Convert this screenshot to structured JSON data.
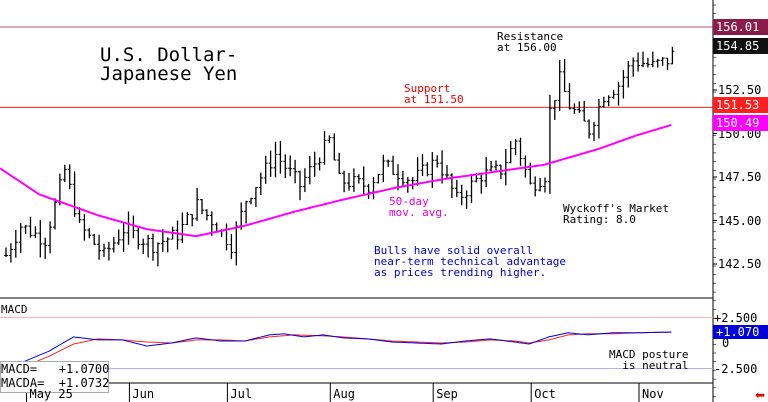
{
  "title_line1": "U.S. Dollar-",
  "title_line2": "Japanese Yen",
  "annotations": {
    "resistance": "Resistance\nat 156.00",
    "support": "Support\nat 151.50",
    "ma": "50-day\nmov. avg.",
    "rating": "Wyckoff's Market\nRating: 8.0",
    "comment": "Bulls have solid overall\nnear-term technical advantage\nas prices trending higher.",
    "macd_note": "MACD posture\n  is neutral"
  },
  "price_tags": {
    "resistance": "156.01",
    "last": "154.85",
    "support": "151.53",
    "ma": "150.49",
    "macd": "+1.070"
  },
  "colors": {
    "resistance": "#8b1d4a",
    "last": "#111111",
    "support": "#ff2020",
    "ma": "#ff00ff",
    "macd": "#0000dd",
    "signal": "#ff2020"
  },
  "macd_label": "MACD",
  "macd_legend": {
    "macd": "MACD=   +1.0700",
    "macda": "MACDA=  +1.0732"
  },
  "chart_data": {
    "type": "ohlc",
    "yticks": [
      "152.50",
      "150.00",
      "147.50",
      "145.00",
      "142.50"
    ],
    "ytick_values": [
      152.5,
      150,
      147.5,
      145,
      142.5
    ],
    "ylim": [
      140.6,
      157.5
    ],
    "macd_yticks": [
      "+2.500",
      "0",
      "-2.500"
    ],
    "macd_ytick_values": [
      2.5,
      0,
      -2.5
    ],
    "macd_ylim": [
      -4,
      5
    ],
    "months": [
      {
        "label": "May 25",
        "bar": 5
      },
      {
        "label": "Jun",
        "bar": 26
      },
      {
        "label": "Jul",
        "bar": 46
      },
      {
        "label": "Aug",
        "bar": 67
      },
      {
        "label": "Sep",
        "bar": 88
      },
      {
        "label": "Oct",
        "bar": 108
      },
      {
        "label": "Nov",
        "bar": 130
      }
    ],
    "bars": 137,
    "resistance": 156.0,
    "support": 151.5,
    "close_keypoints": [
      [
        0,
        143.0
      ],
      [
        3,
        144.7
      ],
      [
        8,
        143.9
      ],
      [
        12,
        147.9
      ],
      [
        15,
        144.7
      ],
      [
        20,
        143.0
      ],
      [
        24,
        144.5
      ],
      [
        30,
        143.6
      ],
      [
        35,
        144.2
      ],
      [
        39,
        145.9
      ],
      [
        43,
        144.7
      ],
      [
        46,
        143.6
      ],
      [
        49,
        146.2
      ],
      [
        55,
        148.8
      ],
      [
        60,
        147.0
      ],
      [
        66,
        149.6
      ],
      [
        68,
        147.3
      ],
      [
        74,
        147.0
      ],
      [
        77,
        148.2
      ],
      [
        83,
        147.3
      ],
      [
        88,
        148.5
      ],
      [
        92,
        146.2
      ],
      [
        97,
        147.6
      ],
      [
        101,
        147.9
      ],
      [
        104,
        149.6
      ],
      [
        107,
        147.0
      ],
      [
        110,
        147.6
      ],
      [
        111,
        151.3
      ],
      [
        113,
        153.1
      ],
      [
        115,
        151.6
      ],
      [
        119,
        150.2
      ],
      [
        122,
        152.2
      ],
      [
        125,
        152.8
      ],
      [
        128,
        154.2
      ],
      [
        132,
        153.9
      ],
      [
        135,
        154.2
      ],
      [
        137,
        154.85
      ]
    ],
    "ma50_keypoints": [
      [
        0,
        148.0
      ],
      [
        8,
        146.5
      ],
      [
        20,
        145.3
      ],
      [
        30,
        144.5
      ],
      [
        40,
        144.1
      ],
      [
        50,
        144.7
      ],
      [
        60,
        145.5
      ],
      [
        70,
        146.2
      ],
      [
        81,
        146.9
      ],
      [
        91,
        147.4
      ],
      [
        101,
        147.8
      ],
      [
        111,
        148.2
      ],
      [
        122,
        149.1
      ],
      [
        130,
        149.9
      ],
      [
        137,
        150.49
      ]
    ],
    "macd_keypoints": [
      [
        0,
        -2.6
      ],
      [
        5,
        -1.8
      ],
      [
        10,
        -0.8
      ],
      [
        15,
        0.6
      ],
      [
        20,
        0.3
      ],
      [
        25,
        0.3
      ],
      [
        30,
        -0.3
      ],
      [
        35,
        0
      ],
      [
        40,
        0.5
      ],
      [
        45,
        0.2
      ],
      [
        50,
        0.2
      ],
      [
        55,
        0.8
      ],
      [
        58,
        0.9
      ],
      [
        62,
        0.6
      ],
      [
        66,
        0.8
      ],
      [
        70,
        0.5
      ],
      [
        75,
        0.4
      ],
      [
        80,
        0.1
      ],
      [
        85,
        0
      ],
      [
        90,
        -0.1
      ],
      [
        95,
        0.2
      ],
      [
        100,
        0.4
      ],
      [
        105,
        0.1
      ],
      [
        108,
        -0.1
      ],
      [
        112,
        0.6
      ],
      [
        116,
        1.0
      ],
      [
        120,
        0.8
      ],
      [
        125,
        1.0
      ],
      [
        130,
        1.0
      ],
      [
        137,
        1.07
      ]
    ],
    "signal_keypoints": [
      [
        0,
        -2.8
      ],
      [
        5,
        -2.3
      ],
      [
        10,
        -1.3
      ],
      [
        15,
        -0.1
      ],
      [
        20,
        0.4
      ],
      [
        25,
        0.3
      ],
      [
        30,
        0.1
      ],
      [
        35,
        0
      ],
      [
        40,
        0.3
      ],
      [
        45,
        0.3
      ],
      [
        50,
        0.2
      ],
      [
        55,
        0.6
      ],
      [
        60,
        0.8
      ],
      [
        66,
        0.7
      ],
      [
        70,
        0.6
      ],
      [
        75,
        0.4
      ],
      [
        80,
        0.2
      ],
      [
        85,
        0.1
      ],
      [
        90,
        0
      ],
      [
        95,
        0.1
      ],
      [
        100,
        0.3
      ],
      [
        105,
        0.2
      ],
      [
        108,
        0
      ],
      [
        112,
        0.3
      ],
      [
        116,
        0.8
      ],
      [
        120,
        0.9
      ],
      [
        125,
        0.9
      ],
      [
        130,
        1.0
      ],
      [
        137,
        1.073
      ]
    ]
  }
}
